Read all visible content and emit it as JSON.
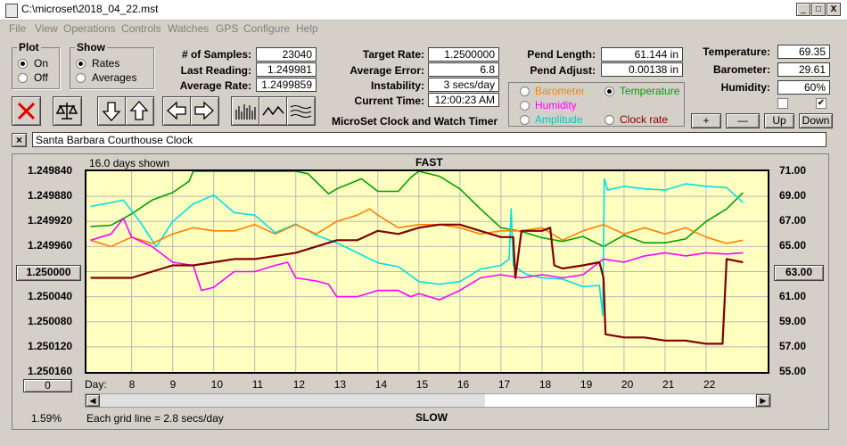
{
  "window": {
    "title": "C:\\microset\\2018_04_22.mst",
    "minimize": "_",
    "restore": "□",
    "close": "X"
  },
  "menu": [
    "File",
    "View",
    "Operations",
    "Controls",
    "Watches",
    "GPS",
    "Configure",
    "Help"
  ],
  "plot": {
    "title": "Plot",
    "on": "On",
    "off": "Off",
    "selected": "On"
  },
  "show": {
    "title": "Show",
    "rates": "Rates",
    "averages": "Averages",
    "selected": "Rates"
  },
  "stats": {
    "samples_label": "# of Samples:",
    "samples": "23040",
    "last_label": "Last Reading:",
    "last": "1.249981",
    "avg_label": "Average Rate:",
    "avg": "1.2499859",
    "target_label": "Target Rate:",
    "target": "1.2500000",
    "avgerr_label": "Average Error:",
    "avgerr": "6.8 sec/week",
    "instab_label": "Instability:",
    "instab": "3 secs/day",
    "time_label": "Current Time:",
    "time": "12:00:23 AM",
    "pendlen_label": "Pend Length:",
    "pendlen": "61.144 in",
    "pendadj_label": "Pend Adjust:",
    "pendadj": "0.00138 in",
    "temp_label": "Temperature:",
    "temp": "69.35",
    "baro_label": "Barometer:",
    "baro": "29.61",
    "hum_label": "Humidity:",
    "hum": "60%"
  },
  "app_name": "MicroSet Clock and Watch Timer",
  "sensors": {
    "barometer": "Barometer",
    "temperature": "Temperature",
    "humidity": "Humidity",
    "amplitude": "Amplitude",
    "clockrate": "Clock rate",
    "selected": "Temperature"
  },
  "sensor_buttons": {
    "plus": "+",
    "minus": "—",
    "up": "Up",
    "down": "Down"
  },
  "clock_name": "Santa Barbara Courthouse Clock",
  "clock_clear": "×",
  "chart_labels": {
    "days_shown": "16.0 days shown",
    "fast": "FAST",
    "slow": "SLOW",
    "day": "Day:",
    "grid": "Each grid line = 2.8 secs/day",
    "left_btn": "1.250000",
    "right_btn": "63.00",
    "bottom_btn": "0",
    "pct": "1.59%"
  },
  "colors": {
    "barometer": "#ff8000",
    "temperature": "#00a000",
    "humidity": "#ff00ff",
    "amplitude": "#00e0e0",
    "clockrate": "#800000",
    "plot_bg": "#ffffc0"
  },
  "chart_data": {
    "type": "line",
    "xlabel": "Day:",
    "x_ticks": [
      8,
      9,
      10,
      11,
      12,
      13,
      14,
      15,
      16,
      17,
      18,
      19,
      20,
      21,
      22
    ],
    "xlim": [
      6.9,
      23.5
    ],
    "y_left_ticks": [
      "1.249840",
      "1.249880",
      "1.249920",
      "1.249960",
      "1.250000",
      "1.250040",
      "1.250080",
      "1.250120",
      "1.250160"
    ],
    "y_left_lim": [
      1.24984,
      1.25016
    ],
    "y_right_ticks": [
      "71.00",
      "69.00",
      "67.00",
      "65.00",
      "63.00",
      "61.00",
      "59.00",
      "57.00",
      "55.00"
    ],
    "y_right_lim": [
      55,
      71
    ],
    "series": [
      {
        "name": "Temperature",
        "color": "#00a000",
        "axis": "right",
        "x": [
          7.0,
          7.5,
          8.0,
          8.5,
          9.0,
          9.4,
          9.5,
          10.0,
          11.0,
          12.0,
          12.3,
          12.8,
          13.0,
          13.6,
          14.0,
          14.5,
          14.8,
          15.0,
          15.5,
          16.0,
          16.5,
          17.0,
          17.5,
          18.0,
          18.5,
          19.0,
          19.5,
          20.0,
          20.5,
          21.0,
          21.5,
          22.0,
          22.5,
          22.9
        ],
        "y": [
          66.6,
          66.7,
          67.6,
          68.7,
          69.3,
          70.2,
          71.0,
          71.0,
          71.0,
          71.0,
          70.8,
          69.2,
          69.6,
          70.4,
          69.4,
          69.4,
          70.5,
          71.0,
          70.6,
          69.6,
          68.0,
          66.5,
          66.2,
          65.7,
          65.4,
          65.8,
          65.0,
          65.9,
          65.3,
          65.3,
          65.6,
          67.0,
          68.0,
          69.3
        ]
      },
      {
        "name": "Amplitude",
        "color": "#00e0e0",
        "axis": "right",
        "x": [
          7.0,
          7.5,
          7.8,
          8.2,
          8.6,
          9.0,
          9.5,
          10.0,
          10.5,
          11.0,
          11.5,
          12.0,
          12.5,
          13.0,
          13.5,
          14.0,
          14.5,
          15.0,
          15.5,
          16.0,
          16.5,
          17.0,
          17.2,
          17.25,
          17.3,
          17.6,
          18.0,
          18.5,
          19.0,
          19.4,
          19.48,
          19.52,
          19.6,
          20.0,
          20.5,
          21.0,
          21.5,
          22.0,
          22.5,
          22.9
        ],
        "y": [
          68.2,
          68.5,
          68.7,
          67.0,
          65.0,
          67.0,
          68.4,
          69.1,
          67.7,
          67.5,
          66.1,
          66.8,
          65.9,
          65.3,
          64.5,
          63.7,
          63.4,
          62.2,
          62.0,
          62.2,
          63.2,
          63.5,
          64.0,
          68.0,
          63.5,
          62.8,
          62.5,
          62.4,
          61.8,
          61.9,
          59.5,
          70.4,
          69.5,
          69.8,
          69.6,
          69.5,
          70.0,
          69.8,
          69.7,
          68.5
        ]
      },
      {
        "name": "Barometer",
        "color": "#ff8000",
        "axis": "left",
        "x": [
          7.0,
          7.5,
          8.0,
          8.5,
          9.0,
          9.5,
          10.0,
          10.5,
          11.0,
          11.5,
          12.0,
          12.5,
          13.0,
          13.5,
          13.8,
          14.0,
          14.5,
          15.0,
          15.5,
          16.0,
          16.5,
          17.0,
          17.5,
          18.0,
          18.5,
          19.0,
          19.5,
          20.0,
          20.5,
          21.0,
          21.5,
          22.0,
          22.5,
          22.9
        ],
        "y": [
          1.24995,
          1.24996,
          1.249945,
          1.249955,
          1.24994,
          1.24993,
          1.249935,
          1.249935,
          1.249925,
          1.24994,
          1.249925,
          1.24994,
          1.24992,
          1.24991,
          1.2499,
          1.24991,
          1.24993,
          1.249925,
          1.249925,
          1.24993,
          1.24994,
          1.249935,
          1.249935,
          1.24993,
          1.24995,
          1.249935,
          1.249925,
          1.24994,
          1.24993,
          1.24994,
          1.24993,
          1.249945,
          1.249955,
          1.24995
        ]
      },
      {
        "name": "Humidity",
        "color": "#ff00ff",
        "axis": "left",
        "x": [
          7.0,
          7.5,
          7.8,
          8.0,
          8.5,
          9.0,
          9.5,
          9.7,
          10.0,
          10.5,
          11.0,
          11.5,
          11.8,
          12.0,
          12.5,
          12.8,
          13.0,
          13.5,
          14.0,
          14.5,
          14.8,
          15.0,
          15.5,
          16.0,
          16.5,
          17.0,
          17.5,
          18.0,
          18.5,
          19.0,
          19.5,
          20.0,
          20.5,
          21.0,
          21.5,
          22.0,
          22.5,
          22.9
        ],
        "y": [
          1.24995,
          1.24994,
          1.249915,
          1.249945,
          1.24996,
          1.249985,
          1.24999,
          1.25003,
          1.250025,
          1.25,
          1.25,
          1.24999,
          1.249985,
          1.25001,
          1.250015,
          1.25002,
          1.25004,
          1.25004,
          1.25003,
          1.25003,
          1.25004,
          1.250035,
          1.250045,
          1.25003,
          1.25001,
          1.250005,
          1.25001,
          1.250005,
          1.25001,
          1.250005,
          1.24998,
          1.249985,
          1.249975,
          1.24997,
          1.249975,
          1.24997,
          1.249972,
          1.24997
        ]
      },
      {
        "name": "Clock rate",
        "color": "#800000",
        "axis": "left",
        "x": [
          7.0,
          8.0,
          8.5,
          9.0,
          9.5,
          10.0,
          10.5,
          11.0,
          11.5,
          12.0,
          12.5,
          13.0,
          13.5,
          14.0,
          14.5,
          15.0,
          15.5,
          16.0,
          16.5,
          17.0,
          17.3,
          17.35,
          17.5,
          18.0,
          18.2,
          18.3,
          18.5,
          19.0,
          19.4,
          19.5,
          19.55,
          20.0,
          20.5,
          21.0,
          21.5,
          22.0,
          22.4,
          22.5,
          22.9
        ],
        "y": [
          1.25001,
          1.25001,
          1.25,
          1.24999,
          1.24999,
          1.249985,
          1.24998,
          1.24998,
          1.249975,
          1.24997,
          1.24996,
          1.24995,
          1.24995,
          1.249935,
          1.24994,
          1.24993,
          1.249925,
          1.249925,
          1.249935,
          1.249945,
          1.249945,
          1.25001,
          1.249935,
          1.249935,
          1.24993,
          1.24999,
          1.249995,
          1.24999,
          1.249985,
          1.25001,
          1.2501,
          1.250105,
          1.250105,
          1.25011,
          1.25011,
          1.250115,
          1.250115,
          1.24998,
          1.249985
        ]
      }
    ]
  }
}
